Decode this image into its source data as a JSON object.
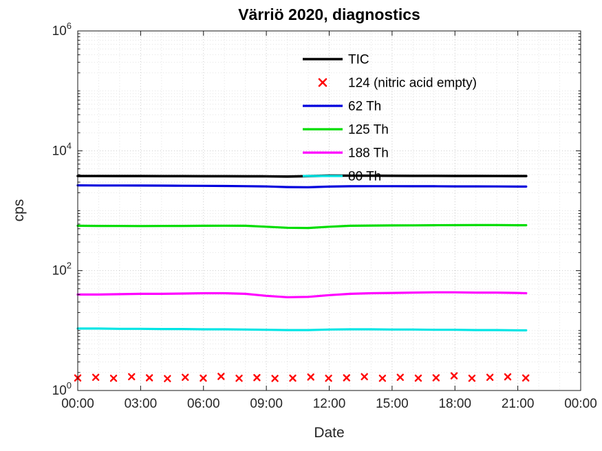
{
  "chart_data": {
    "type": "line",
    "title": "Värriö 2020, diagnostics",
    "xlabel": "Date",
    "ylabel": "cps",
    "y_scale": "log",
    "ylim": [
      1,
      1000000
    ],
    "y_tick_exponents": [
      0,
      2,
      4,
      6
    ],
    "xlim_hours": [
      0,
      24
    ],
    "x_tick_hours": [
      0,
      3,
      6,
      9,
      12,
      15,
      18,
      21,
      24
    ],
    "x_tick_labels": [
      "00:00",
      "03:00",
      "06:00",
      "09:00",
      "12:00",
      "15:00",
      "18:00",
      "21:00",
      "00:00"
    ],
    "grid": "major and minor, dotted",
    "legend_position": "upper center, no box",
    "series": [
      {
        "name": "TIC",
        "style": "line",
        "color": "#000000",
        "x": [
          0,
          1,
          2,
          3,
          4,
          5,
          6,
          7,
          8,
          9,
          10,
          11,
          12,
          13,
          14,
          15,
          16,
          17,
          18,
          19,
          20,
          21,
          21.4
        ],
        "values": [
          3800,
          3800,
          3790,
          3790,
          3780,
          3780,
          3770,
          3770,
          3760,
          3750,
          3720,
          3780,
          3860,
          3850,
          3840,
          3830,
          3820,
          3820,
          3810,
          3810,
          3800,
          3790,
          3790
        ]
      },
      {
        "name": "124 (nitric acid empty)",
        "style": "marker-x",
        "color": "#ff0000",
        "x": [
          0,
          0.86,
          1.71,
          2.57,
          3.42,
          4.28,
          5.13,
          5.99,
          6.84,
          7.7,
          8.55,
          9.41,
          10.26,
          11.12,
          11.97,
          12.83,
          13.68,
          14.54,
          15.39,
          16.25,
          17.1,
          17.96,
          18.81,
          19.67,
          20.52,
          21.38
        ],
        "values": [
          1.62,
          1.66,
          1.6,
          1.7,
          1.63,
          1.58,
          1.66,
          1.61,
          1.72,
          1.6,
          1.64,
          1.59,
          1.61,
          1.68,
          1.6,
          1.63,
          1.7,
          1.6,
          1.66,
          1.61,
          1.63,
          1.76,
          1.6,
          1.66,
          1.69,
          1.62
        ]
      },
      {
        "name": "62 Th",
        "style": "line",
        "color": "#0000dd",
        "x": [
          0,
          1,
          2,
          3,
          4,
          5,
          6,
          7,
          8,
          9,
          10,
          11,
          12,
          13,
          14,
          15,
          16,
          17,
          18,
          19,
          20,
          21,
          21.4
        ],
        "values": [
          2650,
          2640,
          2640,
          2630,
          2620,
          2610,
          2600,
          2590,
          2570,
          2540,
          2480,
          2460,
          2530,
          2560,
          2570,
          2570,
          2560,
          2560,
          2550,
          2550,
          2540,
          2530,
          2530
        ]
      },
      {
        "name": "125 Th",
        "style": "line",
        "color": "#00dd00",
        "x": [
          0,
          1,
          2,
          3,
          4,
          5,
          6,
          7,
          8,
          9,
          10,
          11,
          12,
          13,
          14,
          15,
          16,
          17,
          18,
          19,
          20,
          21,
          21.4
        ],
        "values": [
          560,
          558,
          556,
          555,
          556,
          558,
          560,
          562,
          560,
          540,
          520,
          515,
          540,
          560,
          565,
          568,
          570,
          572,
          574,
          575,
          575,
          573,
          572
        ]
      },
      {
        "name": "188 Th",
        "style": "line",
        "color": "#ff00ff",
        "x": [
          0,
          1,
          2,
          3,
          4,
          5,
          6,
          7,
          8,
          9,
          10,
          11,
          12,
          13,
          14,
          15,
          16,
          17,
          18,
          19,
          20,
          21,
          21.4
        ],
        "values": [
          40,
          40,
          40.5,
          41,
          41,
          41.5,
          42,
          42,
          41,
          38,
          36,
          36.5,
          39,
          41,
          42,
          42.5,
          43,
          43.5,
          43.5,
          43,
          43,
          42.5,
          42
        ]
      },
      {
        "name": "80 Th",
        "style": "line",
        "color": "#00e5e5",
        "x": [
          0,
          1,
          2,
          3,
          4,
          5,
          6,
          7,
          8,
          9,
          10,
          11,
          12,
          13,
          14,
          15,
          16,
          17,
          18,
          19,
          20,
          21,
          21.4
        ],
        "values": [
          10.8,
          10.8,
          10.7,
          10.7,
          10.6,
          10.6,
          10.5,
          10.5,
          10.4,
          10.3,
          10.2,
          10.2,
          10.4,
          10.5,
          10.5,
          10.4,
          10.4,
          10.3,
          10.3,
          10.2,
          10.2,
          10.1,
          10.1
        ]
      }
    ]
  }
}
